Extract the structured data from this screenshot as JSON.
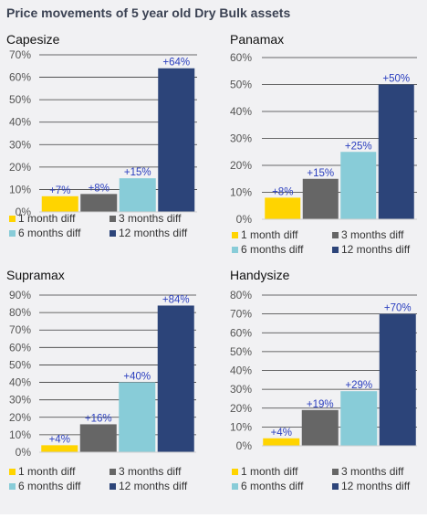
{
  "page_title": "Price movements of 5 year old Dry Bulk assets",
  "colors": {
    "1 month diff": "#ffd400",
    "3 months diff": "#666666",
    "6 months diff": "#88ccd8",
    "12 months diff": "#2c4479"
  },
  "chart_data": [
    {
      "type": "bar",
      "title": "Capesize",
      "categories": [
        "1 month diff",
        "3 months diff",
        "6 months diff",
        "12 months diff"
      ],
      "values": [
        7,
        8,
        15,
        64
      ],
      "data_labels": [
        "+7%",
        "+8%",
        "+15%",
        "+64%"
      ],
      "ylim": [
        0,
        70
      ],
      "yticks": [
        "0%",
        "10%",
        "20%",
        "30%",
        "40%",
        "50%",
        "60%",
        "70%"
      ],
      "grid": true,
      "legend": "bottom"
    },
    {
      "type": "bar",
      "title": "Panamax",
      "categories": [
        "1 month diff",
        "3 months diff",
        "6 months diff",
        "12 months diff"
      ],
      "values": [
        8,
        15,
        25,
        50
      ],
      "data_labels": [
        "+8%",
        "+15%",
        "+25%",
        "+50%"
      ],
      "ylim": [
        0,
        60
      ],
      "yticks": [
        "0%",
        "10%",
        "20%",
        "30%",
        "40%",
        "50%",
        "60%"
      ],
      "grid": true,
      "legend": "bottom"
    },
    {
      "type": "bar",
      "title": "Supramax",
      "categories": [
        "1 month diff",
        "3 months diff",
        "6 months diff",
        "12 months diff"
      ],
      "values": [
        4,
        16,
        40,
        84
      ],
      "data_labels": [
        "+4%",
        "+16%",
        "+40%",
        "+84%"
      ],
      "ylim": [
        0,
        90
      ],
      "yticks": [
        "0%",
        "10%",
        "20%",
        "30%",
        "40%",
        "50%",
        "60%",
        "70%",
        "80%",
        "90%"
      ],
      "grid": true,
      "legend": "bottom"
    },
    {
      "type": "bar",
      "title": "Handysize",
      "categories": [
        "1 month diff",
        "3 months diff",
        "6 months diff",
        "12 months diff"
      ],
      "values": [
        4,
        19,
        29,
        70
      ],
      "data_labels": [
        "+4%",
        "+19%",
        "+29%",
        "+70%"
      ],
      "ylim": [
        0,
        80
      ],
      "yticks": [
        "0%",
        "10%",
        "20%",
        "30%",
        "40%",
        "50%",
        "60%",
        "70%",
        "80%"
      ],
      "grid": true,
      "legend": "bottom"
    }
  ]
}
